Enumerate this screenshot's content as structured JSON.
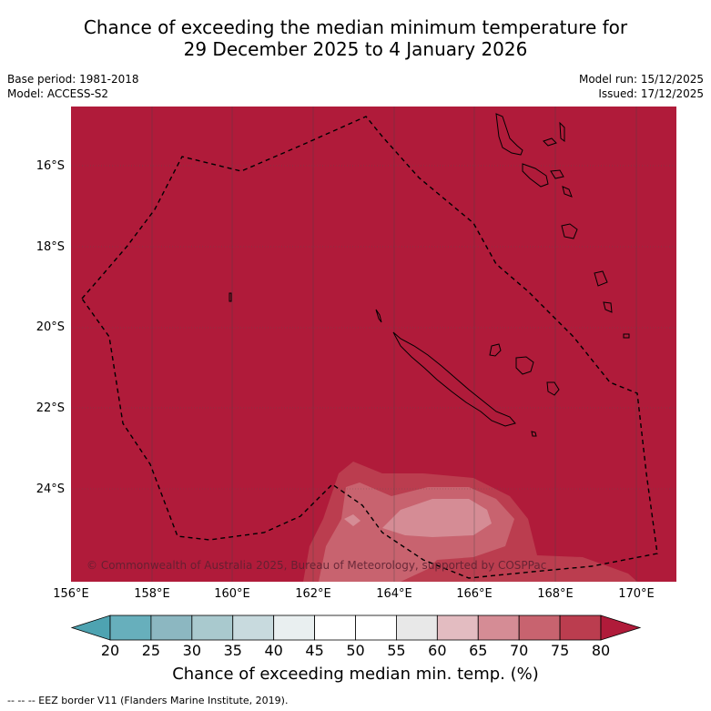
{
  "title": {
    "line1": "Chance of exceeding the median minimum temperature for",
    "line2": "29 December 2025 to 4 January 2026"
  },
  "meta": {
    "base_period": "Base period: 1981-2018",
    "model": "Model: ACCESS-S2",
    "model_run": "Model run: 15/12/2025",
    "issued": "Issued: 17/12/2025"
  },
  "map": {
    "background_color": "#b01b3a",
    "copyright": "© Commonwealth of Australia 2025, Bureau of Meteorology, supported by COSPPac",
    "lat_labels": [
      "16°S",
      "18°S",
      "20°S",
      "22°S",
      "24°S"
    ],
    "lon_labels": [
      "156°E",
      "158°E",
      "160°E",
      "162°E",
      "164°E",
      "166°E",
      "168°E",
      "170°E"
    ]
  },
  "colorbar": {
    "ticks": [
      "20",
      "25",
      "30",
      "35",
      "40",
      "45",
      "50",
      "55",
      "60",
      "65",
      "70",
      "75",
      "80"
    ],
    "colors": [
      "#67afbc",
      "#8cb7c1",
      "#a9c9ce",
      "#c8dade",
      "#e9eff0",
      "#ffffff",
      "#ffffff",
      "#e8e8e8",
      "#e3bcc1",
      "#d58c95",
      "#c8636f",
      "#bb3d4f"
    ],
    "under_color": "#4ea3b1",
    "over_color": "#b01b3a",
    "label": "Chance of exceeding median min. temp. (%)"
  },
  "footnote": "--  --  -- EEZ border V11 (Flanders Marine Institute, 2019)."
}
